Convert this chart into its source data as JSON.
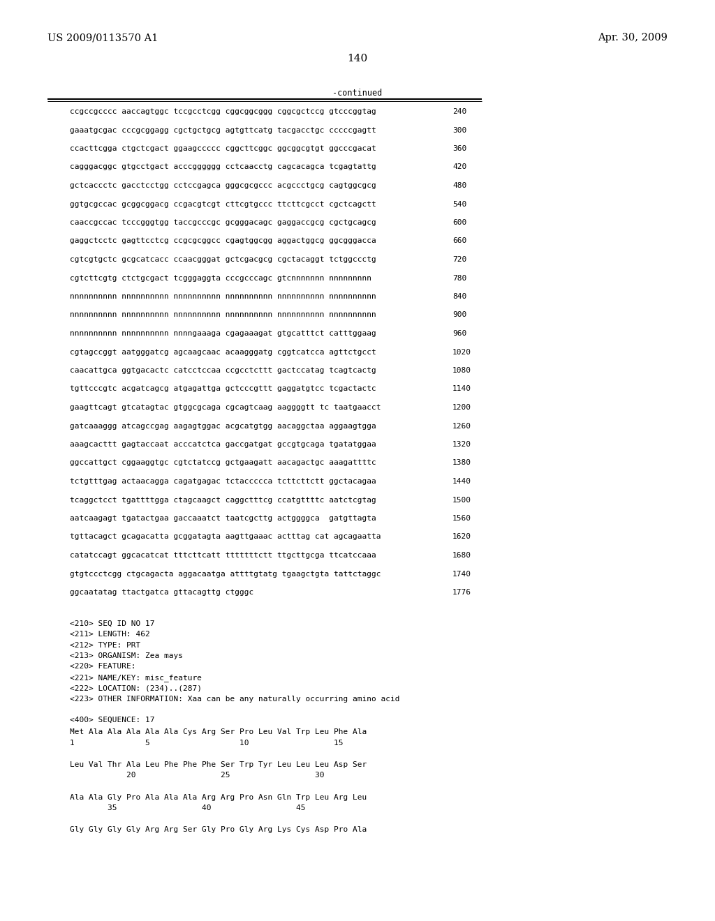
{
  "header_left": "US 2009/0113570 A1",
  "header_right": "Apr. 30, 2009",
  "page_number": "140",
  "continued_label": "-continued",
  "sequence_lines": [
    [
      "ccgccgcccc aaccagtggc tccgcctcgg cggcggcggg cggcgctccg gtcccggtag",
      "240"
    ],
    [
      "gaaatgcgac cccgcggagg cgctgctgcg agtgttcatg tacgacctgc cccccgagtt",
      "300"
    ],
    [
      "ccacttcgga ctgctcgact ggaagccccc cggcttcggc ggcggcgtgt ggcccgacat",
      "360"
    ],
    [
      "cagggacggc gtgcctgact acccgggggg cctcaacctg cagcacagca tcgagtattg",
      "420"
    ],
    [
      "gctcaccctc gacctcctgg cctccgagca gggcgcgccc acgccctgcg cagtggcgcg",
      "480"
    ],
    [
      "ggtgcgccac gcggcggacg ccgacgtcgt cttcgtgccc ttcttcgcct cgctcagctt",
      "540"
    ],
    [
      "caaccgccac tcccgggtgg taccgcccgc gcgggacagc gaggaccgcg cgctgcagcg",
      "600"
    ],
    [
      "gaggctcctc gagttcctcg ccgcgcggcc cgagtggcgg aggactggcg ggcgggacca",
      "660"
    ],
    [
      "cgtcgtgctc gcgcatcacc ccaacgggat gctcgacgcg cgctacaggt tctggccctg",
      "720"
    ],
    [
      "cgtcttcgtg ctctgcgact tcgggaggta cccgcccagc gtcnnnnnnn nnnnnnnnn",
      "780"
    ],
    [
      "nnnnnnnnnn nnnnnnnnnn nnnnnnnnnn nnnnnnnnnn nnnnnnnnnn nnnnnnnnnn",
      "840"
    ],
    [
      "nnnnnnnnnn nnnnnnnnnn nnnnnnnnnn nnnnnnnnnn nnnnnnnnnn nnnnnnnnnn",
      "900"
    ],
    [
      "nnnnnnnnnn nnnnnnnnnn nnnngaaaga cgagaaagat gtgcatttct catttggaag",
      "960"
    ],
    [
      "cgtagccggt aatgggatcg agcaagcaac acaagggatg cggtcatcca agttctgcct",
      "1020"
    ],
    [
      "caacattgca ggtgacactc catcctccaa ccgcctcttt gactccatag tcagtcactg",
      "1080"
    ],
    [
      "tgttcccgtc acgatcagcg atgagattga gctcccgttt gaggatgtcc tcgactactc",
      "1140"
    ],
    [
      "gaagttcagt gtcatagtac gtggcgcaga cgcagtcaag aaggggtt tc taatgaacct",
      "1200"
    ],
    [
      "gatcaaaggg atcagccgag aagagtggac acgcatgtgg aacaggctaa aggaagtgga",
      "1260"
    ],
    [
      "aaagcacttt gagtaccaat acccatctca gaccgatgat gccgtgcaga tgatatggaa",
      "1320"
    ],
    [
      "ggccattgct cggaaggtgc cgtctatccg gctgaagatt aacagactgc aaagattttc",
      "1380"
    ],
    [
      "tctgtttgag actaacagga cagatgagac tctaccccca tcttcttctt ggctacagaa",
      "1440"
    ],
    [
      "tcaggctcct tgattttgga ctagcaagct caggctttcg ccatgttttc aatctcgtag",
      "1500"
    ],
    [
      "aatcaagagt tgatactgaa gaccaaatct taatcgcttg actggggca  gatgttagta",
      "1560"
    ],
    [
      "tgttacagct gcagacatta gcggatagta aagttgaaac actttag cat agcagaatta",
      "1620"
    ],
    [
      "catatccagt ggcacatcat tttcttcatt tttttttctt ttgcttgcga ttcatccaaa",
      "1680"
    ],
    [
      "gtgtccctcgg ctgcagacta aggacaatga attttgtatg tgaagctgta tattctaggc",
      "1740"
    ],
    [
      "ggcaatatag ttactgatca gttacagttg ctgggc",
      "1776"
    ]
  ],
  "metadata_lines": [
    "<210> SEQ ID NO 17",
    "<211> LENGTH: 462",
    "<212> TYPE: PRT",
    "<213> ORGANISM: Zea mays",
    "<220> FEATURE:",
    "<221> NAME/KEY: misc_feature",
    "<222> LOCATION: (234)..(287)",
    "<223> OTHER INFORMATION: Xaa can be any naturally occurring amino acid"
  ],
  "sequence_header": "<400> SEQUENCE: 17",
  "protein_lines": [
    "Met Ala Ala Ala Ala Ala Cys Arg Ser Pro Leu Val Trp Leu Phe Ala",
    "1               5                   10                  15",
    "",
    "Leu Val Thr Ala Leu Phe Phe Phe Ser Trp Tyr Leu Leu Leu Asp Ser",
    "            20                  25                  30",
    "",
    "Ala Ala Gly Pro Ala Ala Ala Arg Arg Pro Asn Gln Trp Leu Arg Leu",
    "        35                  40                  45",
    "",
    "Gly Gly Gly Gly Arg Arg Ser Gly Pro Gly Arg Lys Cys Asp Pro Ala"
  ],
  "bg_color": "#ffffff",
  "text_color": "#000000"
}
